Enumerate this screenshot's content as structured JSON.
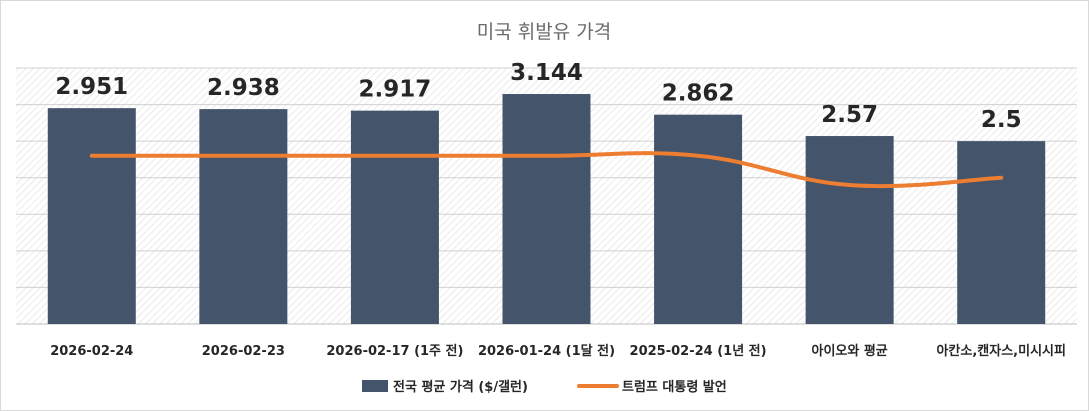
{
  "chart_data": {
    "type": "bar",
    "title": "미국 휘발유 가격",
    "categories": [
      "2026-02-24",
      "2026-02-23",
      "2026-02-17 (1주 전)",
      "2026-01-24 (1달 전)",
      "2025-02-24 (1년 전)",
      "아이오와 평균",
      "아칸소,캔자스,미시시피"
    ],
    "series": [
      {
        "name": "전국 평균 가격 ($/갤런)",
        "type": "bar",
        "color": "#44546a",
        "values": [
          2.951,
          2.938,
          2.917,
          3.144,
          2.862,
          2.57,
          2.5
        ],
        "labels": [
          "2.951",
          "2.938",
          "2.917",
          "3.144",
          "2.862",
          "2.57",
          "2.5"
        ]
      },
      {
        "name": "트럼프 대통령 발언",
        "type": "line",
        "color": "#ed7d31",
        "values": [
          2.3,
          2.3,
          2.3,
          2.3,
          2.3,
          1.9,
          2.0
        ]
      }
    ],
    "ylim": [
      0,
      3.5
    ],
    "y_gridlines": [
      0.5,
      1.0,
      1.5,
      2.0,
      2.5,
      3.0,
      3.5
    ],
    "grid": true,
    "legend_position": "bottom",
    "plot_background": "diagonal-hatch"
  }
}
